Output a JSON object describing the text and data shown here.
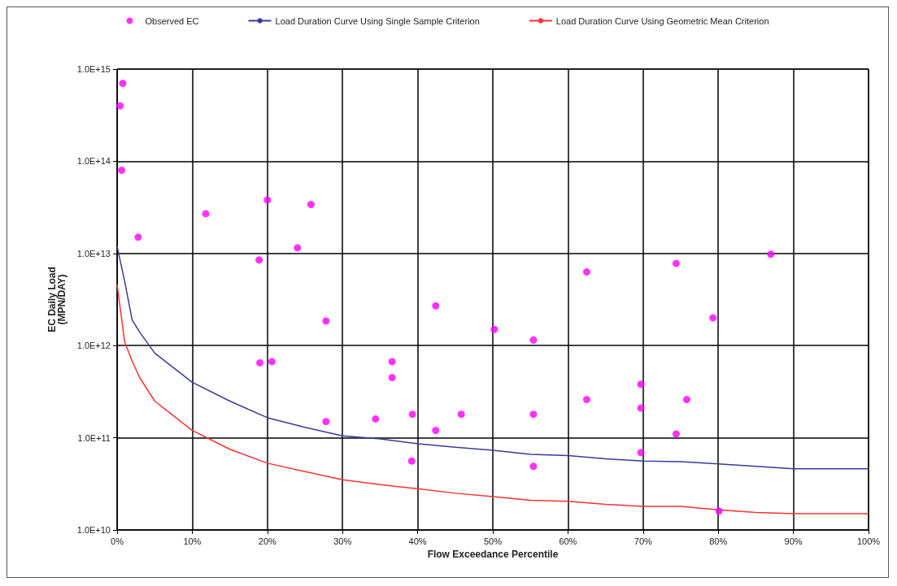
{
  "chart_data": {
    "type": "scatter",
    "xlabel": "Flow Exceedance Percentile",
    "ylabel": "EC Daily Load\n(MPN/DAY)",
    "log": "y",
    "grid": true,
    "legend": "top",
    "xlim": [
      0,
      100
    ],
    "xticks": [
      {
        "value": 0,
        "label": "0%"
      },
      {
        "value": 10,
        "label": "10%"
      },
      {
        "value": 20,
        "label": "20%"
      },
      {
        "value": 30,
        "label": "30%"
      },
      {
        "value": 40,
        "label": "40%"
      },
      {
        "value": 50,
        "label": "50%"
      },
      {
        "value": 60,
        "label": "60%"
      },
      {
        "value": 70,
        "label": "70%"
      },
      {
        "value": 80,
        "label": "80%"
      },
      {
        "value": 90,
        "label": "90%"
      },
      {
        "value": 100,
        "label": "100%"
      }
    ],
    "ylim": [
      10000000000.0,
      1000000000000000.0
    ],
    "yticks": [
      {
        "value": 10000000000.0,
        "label": "1.0E+10"
      },
      {
        "value": 100000000000.0,
        "label": "1.0E+11"
      },
      {
        "value": 1000000000000.0,
        "label": "1.0E+12"
      },
      {
        "value": 10000000000000.0,
        "label": "1.0E+13"
      },
      {
        "value": 100000000000000.0,
        "label": "1.0E+14"
      },
      {
        "value": 1000000000000000.0,
        "label": "1.0E+15"
      }
    ],
    "series": [
      {
        "name": "Observed EC",
        "marker": "circle",
        "color": "#ff00ff",
        "x": [
          0.75,
          0.4,
          0.6,
          2.8,
          11.8,
          20,
          25.8,
          24,
          18.9,
          27.8,
          19,
          20.6,
          27.8,
          34.4,
          36.6,
          36.6,
          39.3,
          39.2,
          42.4,
          42.4,
          45.8,
          50.2,
          55.4,
          55.4,
          55.4,
          62.5,
          62.5,
          69.7,
          69.7,
          69.7,
          74.4,
          74.4,
          75.8,
          79.3,
          87,
          80.1
        ],
        "values": [
          700000000000000.0,
          400000000000000.0,
          80000000000000.0,
          15000000000000.0,
          27000000000000.0,
          38000000000000.0,
          34000000000000.0,
          11500000000000.0,
          8500000000000.0,
          1850000000000.0,
          650000000000.0,
          670000000000.0,
          150000000000.0,
          160000000000.0,
          670000000000.0,
          450000000000.0,
          180000000000.0,
          56000000000.0,
          2700000000000.0,
          120000000000.0,
          180000000000.0,
          1500000000000.0,
          1150000000000.0,
          180000000000.0,
          49000000000.0,
          6300000000000.0,
          260000000000.0,
          380000000000.0,
          210000000000.0,
          69000000000.0,
          7800000000000.0,
          110000000000.0,
          260000000000.0,
          2000000000000.0,
          9800000000000.0,
          16000000000.0
        ]
      },
      {
        "name": "Load Duration Curve Using Single Sample Criterion",
        "type": "line",
        "marker": "none",
        "color": "#3a3a9a",
        "x": [
          0,
          1,
          2,
          3,
          5,
          10,
          15,
          20,
          25,
          30,
          35,
          40,
          45,
          50,
          55,
          60,
          65,
          70,
          75,
          80,
          85,
          90,
          100
        ],
        "values": [
          12000000000000.0,
          5000000000000.0,
          1900000000000.0,
          1400000000000.0,
          830000000000.0,
          400000000000.0,
          250000000000.0,
          165000000000.0,
          130000000000.0,
          105000000000.0,
          97000000000.0,
          86000000000.0,
          79000000000.0,
          73000000000.0,
          66000000000.0,
          64000000000.0,
          59000000000.0,
          56000000000.0,
          55000000000.0,
          52000000000.0,
          49000000000.0,
          46000000000.0,
          46000000000.0
        ]
      },
      {
        "name": "Load Duration Curve Using Geometric Mean Criterion",
        "type": "line",
        "marker": "none",
        "color": "#ff3030",
        "x": [
          0,
          1,
          2,
          3,
          5,
          10,
          15,
          20,
          25,
          30,
          35,
          40,
          45,
          50,
          55,
          60,
          65,
          70,
          75,
          80,
          85,
          90,
          100
        ],
        "values": [
          4600000000000.0,
          1100000000000.0,
          680000000000.0,
          450000000000.0,
          250000000000.0,
          120000000000.0,
          75000000000.0,
          53000000000.0,
          43000000000.0,
          35000000000.0,
          31000000000.0,
          28000000000.0,
          25000000000.0,
          23000000000.0,
          21000000000.0,
          20500000000.0,
          19000000000.0,
          18000000000.0,
          18000000000.0,
          16500000000.0,
          15500000000.0,
          15000000000.0,
          15000000000.0
        ]
      }
    ]
  }
}
